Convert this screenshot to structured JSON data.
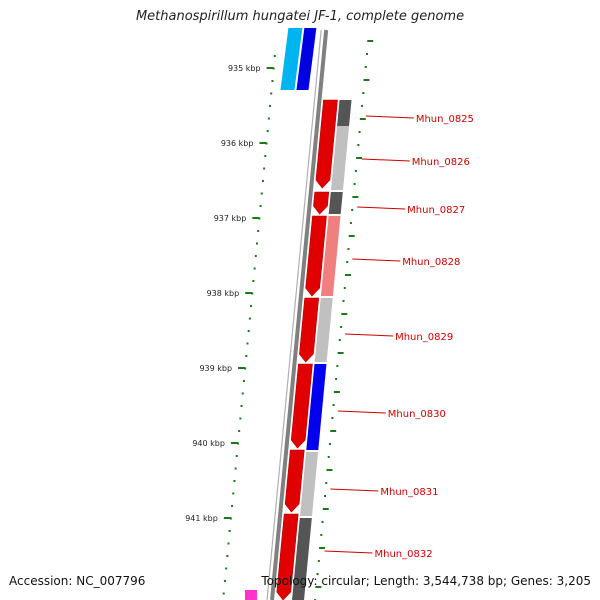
{
  "title": "Methanospirillum hungatei JF-1, complete genome",
  "accession": "Accession: NC_007796",
  "summary": "Topology: circular; Length: 3,544,738 bp; Genes: 3,205",
  "scale_labels": [
    "935 kbp",
    "936 kbp",
    "937 kbp",
    "938 kbp",
    "939 kbp",
    "940 kbp",
    "941 kbp"
  ],
  "genes": [
    {
      "label": "Mhun_0825",
      "strand_color": "#e00000",
      "partner_color": "#555555"
    },
    {
      "label": "Mhun_0826",
      "strand_color": "#e00000",
      "partner_color": "#c0c0c0"
    },
    {
      "label": "Mhun_0827",
      "strand_color": "#e00000",
      "partner_color": "#555555"
    },
    {
      "label": "Mhun_0828",
      "strand_color": "#e00000",
      "partner_color": "#f08080"
    },
    {
      "label": "Mhun_0829",
      "strand_color": "#e00000",
      "partner_color": "#c0c0c0"
    },
    {
      "label": "Mhun_0830",
      "strand_color": "#e00000",
      "partner_color": "#0000ee"
    },
    {
      "label": "Mhun_0831",
      "strand_color": "#e00000",
      "partner_color": "#c0c0c0"
    },
    {
      "label": "Mhun_0832",
      "strand_color": "#e00000",
      "partner_color": "#555555"
    }
  ],
  "colors": {
    "backbone": "#808080",
    "gc_dots": "#1a7a1a",
    "label_line": "#cc0000",
    "upper_cyan": "#00b4f0",
    "upper_blue": "#0000e0",
    "bottom_magenta": "#ff33cc"
  }
}
